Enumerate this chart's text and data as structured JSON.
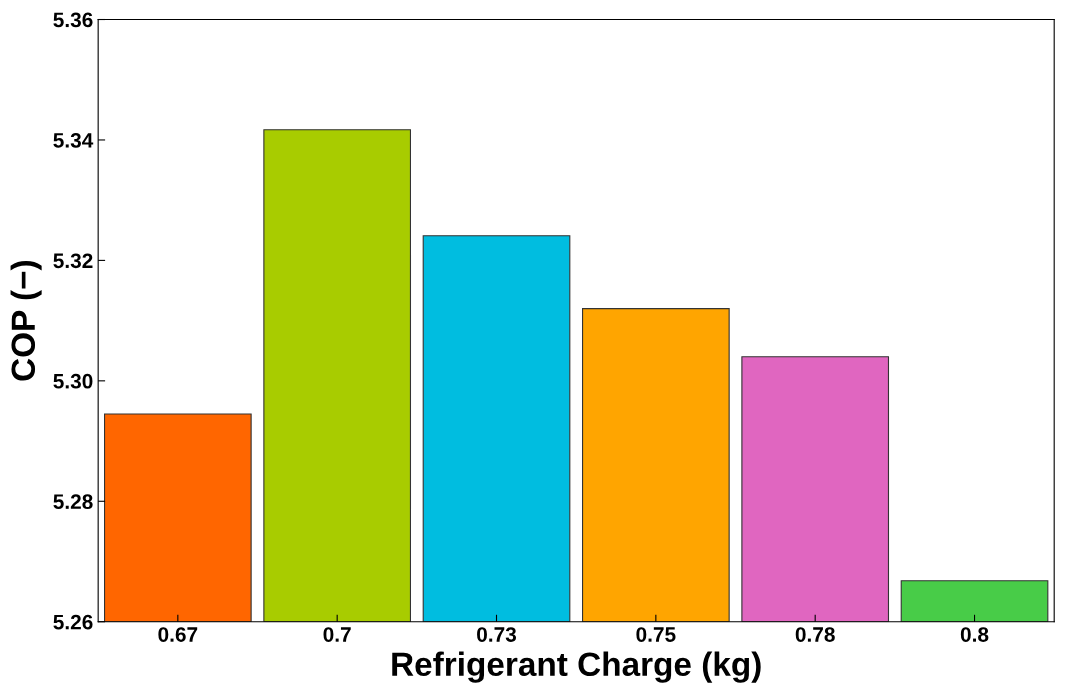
{
  "chart_data": {
    "type": "bar",
    "xlabel": "Refrigerant Charge (kg)",
    "ylabel": "COP (−)",
    "categories": [
      "0.67",
      "0.7",
      "0.73",
      "0.75",
      "0.78",
      "0.8"
    ],
    "values": [
      5.2945,
      5.3417,
      5.3241,
      5.312,
      5.304,
      5.2668
    ],
    "colors": [
      "#ff6600",
      "#a8cc00",
      "#00bde0",
      "#ffa500",
      "#e066c0",
      "#48cc48"
    ],
    "ylim": [
      5.26,
      5.36
    ],
    "yticks": [
      {
        "value": 5.26,
        "label": "5.26"
      },
      {
        "value": 5.28,
        "label": "5.28"
      },
      {
        "value": 5.3,
        "label": "5.30"
      },
      {
        "value": 5.32,
        "label": "5.32"
      },
      {
        "value": 5.34,
        "label": "5.34"
      },
      {
        "value": 5.36,
        "label": "5.36"
      }
    ],
    "grid": false
  }
}
